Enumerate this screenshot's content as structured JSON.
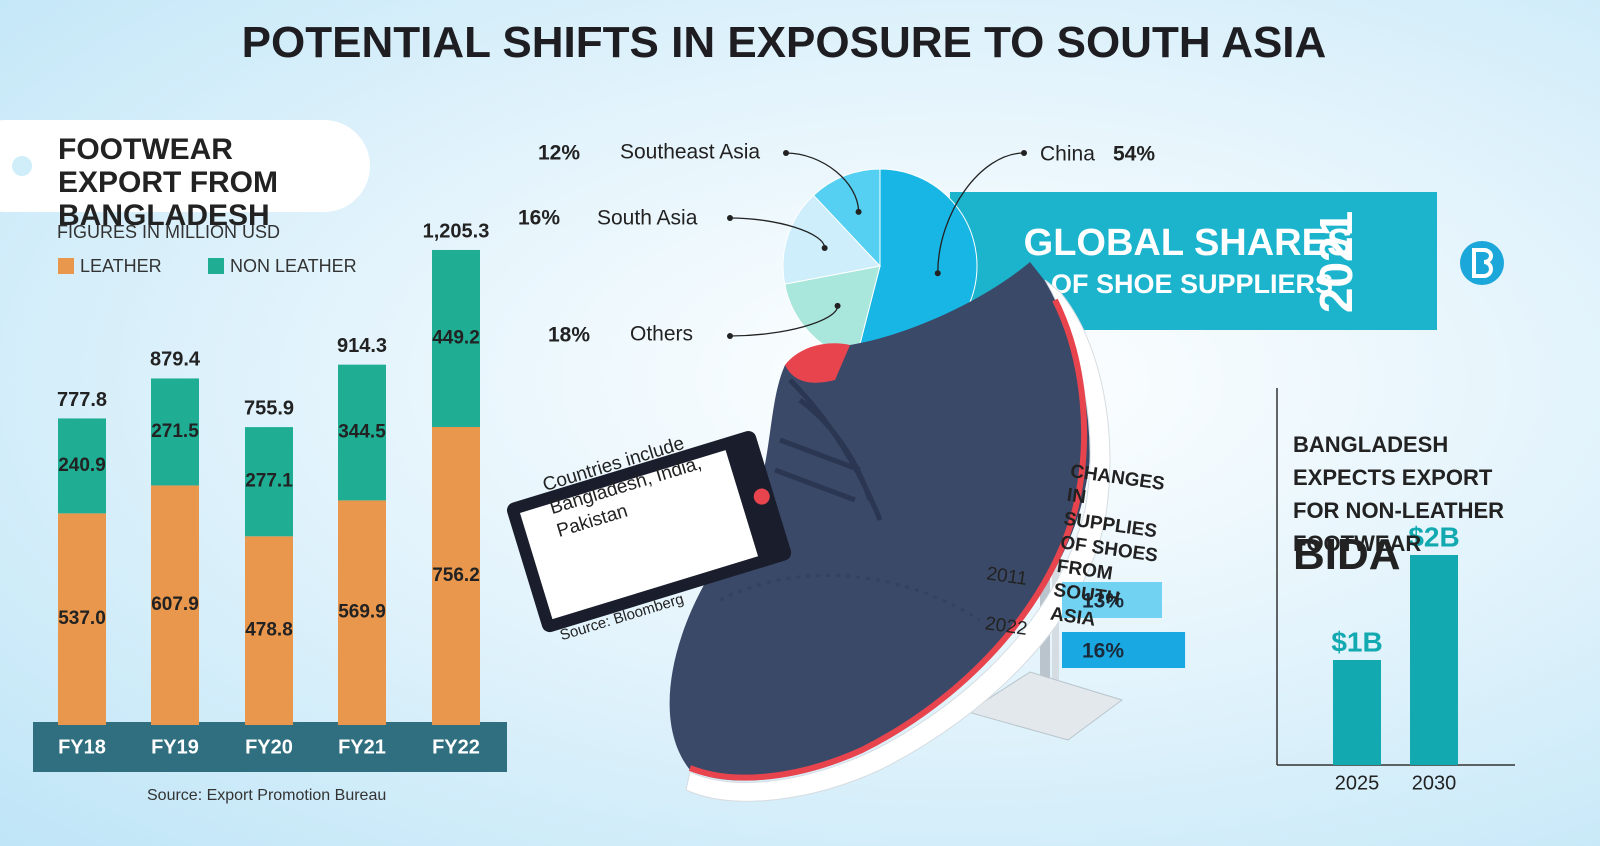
{
  "title": "POTENTIAL SHIFTS IN EXPOSURE TO SOUTH ASIA",
  "chart_data": [
    {
      "type": "stacked-bar",
      "title": "FOOTWEAR EXPORT FROM BANGLADESH",
      "subtitle": "FIGURES IN MILLION USD",
      "categories": [
        "FY18",
        "FY19",
        "FY20",
        "FY21",
        "FY22"
      ],
      "series": [
        {
          "name": "LEATHER",
          "color": "#e8974d",
          "values": [
            537.0,
            607.9,
            478.8,
            569.9,
            756.2
          ],
          "value_labels": [
            "537.0",
            "607.9",
            "478.8",
            "569.9",
            "756.2"
          ]
        },
        {
          "name": "NON LEATHER",
          "color": "#1fae94",
          "values": [
            240.9,
            271.5,
            277.1,
            344.5,
            449.2
          ],
          "value_labels": [
            "240.9",
            "271.5",
            "277.1",
            "344.5",
            "449.2"
          ]
        }
      ],
      "totals": [
        777.8,
        879.4,
        755.9,
        914.3,
        1205.3
      ],
      "total_labels": [
        "777.8",
        "879.4",
        "755.9",
        "914.3",
        "1,205.3"
      ],
      "source": "Source: Export Promotion Bureau"
    },
    {
      "type": "pie",
      "title": "GLOBAL SHARES",
      "subtitle": "OF SHOE SUPPLIERS",
      "year": "2021",
      "categories": [
        "China",
        "Others",
        "South Asia",
        "Southeast Asia"
      ],
      "values": [
        54,
        18,
        16,
        12
      ],
      "value_labels": [
        "54%",
        "18%",
        "16%",
        "12%"
      ],
      "colors": [
        "#17b6e4",
        "#a9e6dc",
        "#cdeefa",
        "#56d0f2"
      ],
      "note": "Countries include Bangladesh, India, Pakistan",
      "source": "Source: Bloomberg"
    },
    {
      "type": "hbar",
      "title": "CHANGES IN SUPPLIES OF SHOES FROM SOUTH ASIA",
      "categories": [
        "2011",
        "2022"
      ],
      "values": [
        13,
        16
      ],
      "value_labels": [
        "13%",
        "16%"
      ],
      "colors": [
        "#72d2f2",
        "#19a8e2"
      ]
    },
    {
      "type": "bar",
      "title": "BANGLADESH EXPECTS EXPORT FOR NON-LEATHER FOOTWEAR",
      "subtitle": "BIDA",
      "categories": [
        "2025",
        "2030"
      ],
      "values": [
        1,
        2
      ],
      "value_labels": [
        "$1B",
        "$2B"
      ],
      "color": "#12a9b0"
    }
  ]
}
